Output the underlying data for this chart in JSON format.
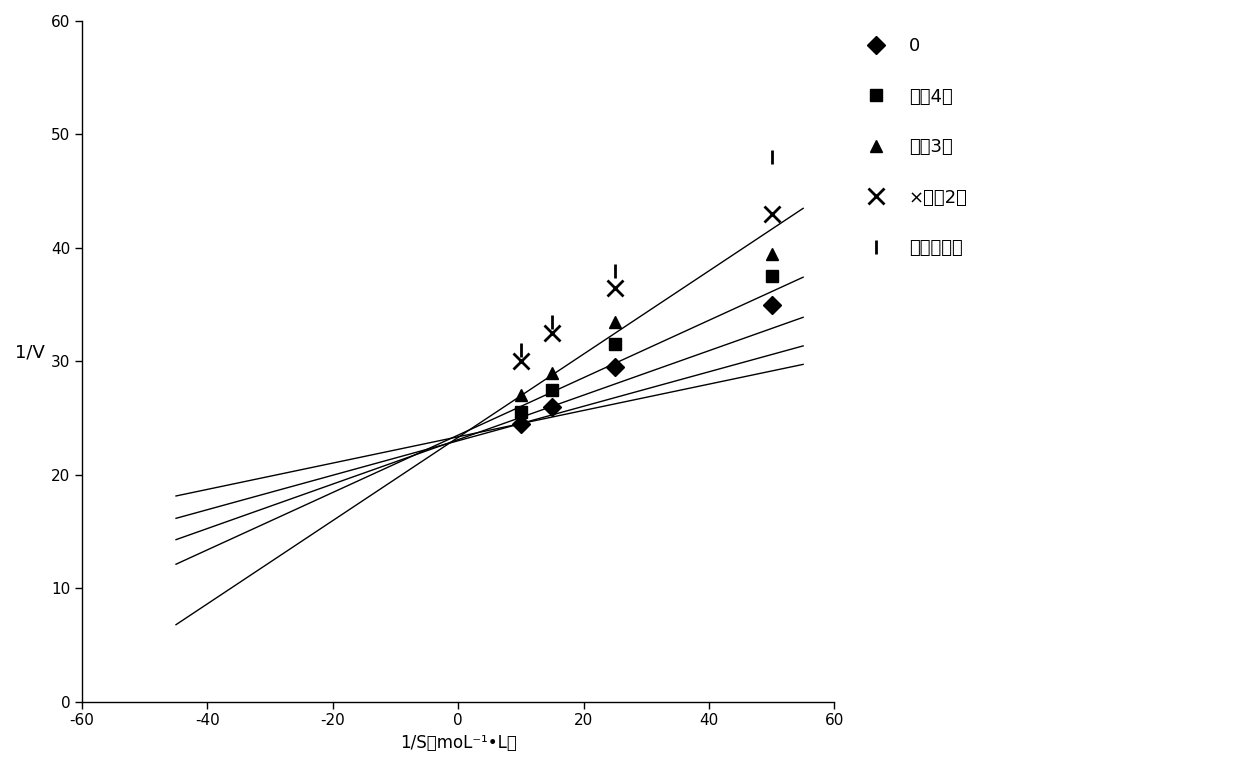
{
  "series": [
    {
      "label": "0",
      "marker": "D",
      "markersize": 9,
      "x_data": [
        10,
        15,
        25,
        50
      ],
      "y_data": [
        24.5,
        26.0,
        29.5,
        35.0
      ],
      "slope": 0.116,
      "intercept": 23.35
    },
    {
      "label": "稀释4倍",
      "marker": "s",
      "markersize": 9,
      "x_data": [
        10,
        15,
        25,
        50
      ],
      "y_data": [
        25.5,
        27.5,
        31.5,
        37.5
      ],
      "slope": 0.152,
      "intercept": 23.0
    },
    {
      "label": "稀释3倍",
      "marker": "^",
      "markersize": 9,
      "x_data": [
        10,
        15,
        25,
        50
      ],
      "y_data": [
        27.0,
        29.0,
        33.5,
        39.5
      ],
      "slope": 0.196,
      "intercept": 23.1
    },
    {
      "label": "×稀释2倍",
      "marker": "x",
      "markersize": 11,
      "x_data": [
        10,
        15,
        25,
        50
      ],
      "y_data": [
        30.0,
        32.5,
        36.5,
        43.0
      ],
      "slope": 0.253,
      "intercept": 23.5
    },
    {
      "label": "，原菌悬液",
      "marker": "|",
      "markersize": 10,
      "x_data": [
        10,
        15,
        25,
        50
      ],
      "y_data": [
        31.0,
        33.5,
        38.0,
        48.0
      ],
      "slope": 0.367,
      "intercept": 23.3
    }
  ],
  "xlim": [
    -60,
    60
  ],
  "ylim": [
    0,
    60
  ],
  "xticks": [
    -60,
    -40,
    -20,
    0,
    20,
    40,
    60
  ],
  "yticks": [
    0,
    10,
    20,
    30,
    40,
    50,
    60
  ],
  "xlabel": "1/S（moL⁻¹•L）",
  "ylabel": "1/V",
  "line_xstart": -45,
  "line_xend": 55,
  "background_color": "#ffffff",
  "legend_config": [
    {
      "label": "0",
      "marker": "D",
      "ms": 9,
      "filled": true
    },
    {
      "label": "稀释4倍",
      "marker": "s",
      "ms": 9,
      "filled": true
    },
    {
      "label": "稀释3倍",
      "marker": "^",
      "ms": 9,
      "filled": true
    },
    {
      "label": "×稀释2倍",
      "marker": "x",
      "ms": 11,
      "filled": false
    },
    {
      "label": "，原菌悬液",
      "marker": "|",
      "ms": 10,
      "filled": false
    }
  ]
}
